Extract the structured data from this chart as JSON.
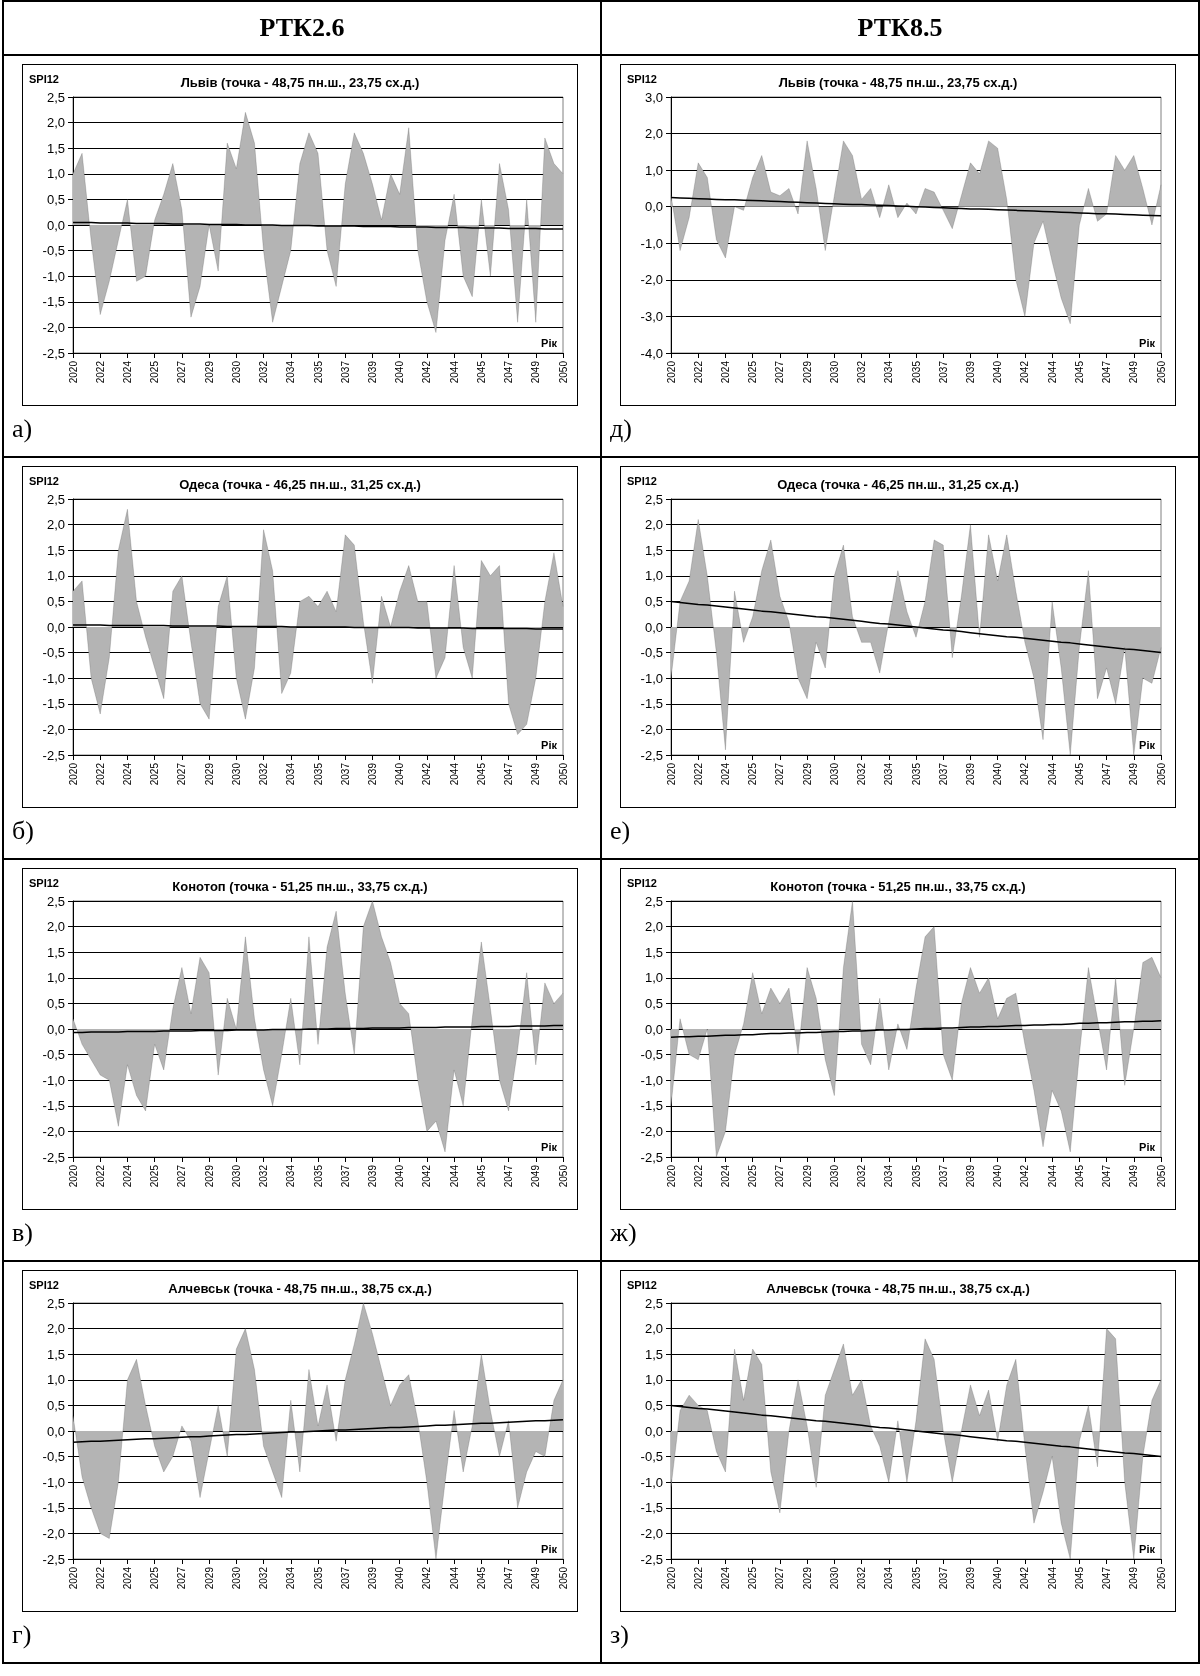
{
  "chart_data": [
    {
      "type": "area",
      "subtitle": "РТК2.6",
      "title": "Львів (точка - 48,75 пн.ш., 23,75 сх.д.)",
      "ylabel": "SPI12",
      "xlabel": "Рік",
      "annotations": [
        "а)"
      ],
      "grid": "y",
      "categories": [
        "2020",
        null,
        null,
        "2022",
        null,
        null,
        "2024",
        null,
        null,
        "2025",
        null,
        null,
        "2027",
        null,
        null,
        "2029",
        null,
        null,
        "2030",
        null,
        null,
        "2032",
        null,
        null,
        "2034",
        null,
        null,
        "2035",
        null,
        null,
        "2037",
        null,
        null,
        "2039",
        null,
        null,
        "2040",
        null,
        null,
        "2042",
        null,
        null,
        "2044",
        null,
        null,
        "2045",
        null,
        null,
        "2047",
        null,
        null,
        "2049",
        null,
        null,
        "2050"
      ],
      "ylim": [
        -2.5,
        2.5
      ],
      "yticks": [
        {
          "value": -2.5,
          "label": "-2,5"
        },
        {
          "value": -2,
          "label": "-2,0"
        },
        {
          "value": -1.5,
          "label": "-1,5"
        },
        {
          "value": -1,
          "label": "-1,0"
        },
        {
          "value": -0.5,
          "label": "-0,5"
        },
        {
          "value": 0,
          "label": "0,0"
        },
        {
          "value": 0.5,
          "label": "0,5"
        },
        {
          "value": 1,
          "label": "1,0"
        },
        {
          "value": 1.5,
          "label": "1,5"
        },
        {
          "value": 2,
          "label": "2,0"
        },
        {
          "value": 2.5,
          "label": "2,5"
        }
      ],
      "series": [
        {
          "type": "area",
          "color": "#b4b4b4",
          "values": [
            1.0,
            1.4,
            -0.3,
            -1.75,
            -1.1,
            -0.3,
            0.5,
            -1.1,
            -1.0,
            0.1,
            0.6,
            1.2,
            0.3,
            -1.8,
            -1.2,
            0.0,
            -0.9,
            1.6,
            1.1,
            2.2,
            1.6,
            -0.5,
            -1.9,
            -1.2,
            -0.5,
            1.2,
            1.8,
            1.4,
            -0.5,
            -1.2,
            0.8,
            1.8,
            1.4,
            0.8,
            0.1,
            1.0,
            0.6,
            1.9,
            -0.5,
            -1.5,
            -2.1,
            -0.3,
            0.6,
            -1.0,
            -1.4,
            0.5,
            -1.0,
            1.2,
            0.3,
            -1.9,
            0.5,
            -1.9,
            1.7,
            1.2,
            1.0
          ]
        },
        {
          "type": "line",
          "color": "#000000",
          "values": [
            0.05,
            0.05,
            0.05,
            0.04,
            0.04,
            0.04,
            0.04,
            0.03,
            0.03,
            0.03,
            0.03,
            0.02,
            0.02,
            0.02,
            0.02,
            0.01,
            0.01,
            0.01,
            0.01,
            0,
            0,
            0,
            0,
            -0.01,
            -0.01,
            -0.01,
            -0.01,
            -0.02,
            -0.02,
            -0.02,
            -0.02,
            -0.02,
            -0.03,
            -0.03,
            -0.03,
            -0.03,
            -0.04,
            -0.04,
            -0.04,
            -0.04,
            -0.05,
            -0.05,
            -0.05,
            -0.05,
            -0.06,
            -0.06,
            -0.06,
            -0.06,
            -0.07,
            -0.07,
            -0.07,
            -0.07,
            -0.08,
            -0.08,
            -0.08
          ]
        }
      ]
    },
    {
      "type": "area",
      "subtitle": "РТК8.5",
      "title": "Львів (точка - 48,75 пн.ш., 23,75 сх.д.)",
      "ylabel": "SPI12",
      "xlabel": "Рік",
      "annotations": [
        "д)"
      ],
      "grid": "y",
      "categories": [
        "2020",
        null,
        null,
        "2022",
        null,
        null,
        "2024",
        null,
        null,
        "2025",
        null,
        null,
        "2027",
        null,
        null,
        "2029",
        null,
        null,
        "2030",
        null,
        null,
        "2032",
        null,
        null,
        "2034",
        null,
        null,
        "2035",
        null,
        null,
        "2037",
        null,
        null,
        "2039",
        null,
        null,
        "2040",
        null,
        null,
        "2042",
        null,
        null,
        "2044",
        null,
        null,
        "2045",
        null,
        null,
        "2047",
        null,
        null,
        "2049",
        null,
        null,
        "2050"
      ],
      "ylim": [
        -4,
        3
      ],
      "yticks": [
        {
          "value": -4,
          "label": "-4,0"
        },
        {
          "value": -3,
          "label": "-3,0"
        },
        {
          "value": -2,
          "label": "-2,0"
        },
        {
          "value": -1,
          "label": "-1,0"
        },
        {
          "value": 0,
          "label": "0,0"
        },
        {
          "value": 1,
          "label": "1,0"
        },
        {
          "value": 2,
          "label": "2,0"
        },
        {
          "value": 3,
          "label": "3,0"
        }
      ],
      "series": [
        {
          "type": "area",
          "color": "#b4b4b4",
          "values": [
            0.3,
            -1.2,
            -0.3,
            1.2,
            0.8,
            -0.9,
            -1.4,
            0.0,
            -0.1,
            0.8,
            1.4,
            0.4,
            0.3,
            0.5,
            -0.2,
            1.8,
            0.5,
            -1.2,
            0.3,
            1.8,
            1.4,
            0.2,
            0.5,
            -0.3,
            0.6,
            -0.3,
            0.1,
            -0.2,
            0.5,
            0.4,
            -0.1,
            -0.6,
            0.3,
            1.2,
            0.9,
            1.8,
            1.6,
            0.2,
            -2.0,
            -3.0,
            -1.0,
            -0.4,
            -1.5,
            -2.5,
            -3.2,
            -0.5,
            0.5,
            -0.4,
            -0.2,
            1.4,
            1.0,
            1.4,
            0.5,
            -0.5,
            0.6
          ]
        },
        {
          "type": "line",
          "color": "#000000",
          "values": [
            0.25,
            0.24,
            0.23,
            0.22,
            0.21,
            0.2,
            0.19,
            0.19,
            0.18,
            0.17,
            0.16,
            0.15,
            0.14,
            0.13,
            0.12,
            0.11,
            0.1,
            0.09,
            0.08,
            0.07,
            0.06,
            0.06,
            0.05,
            0.04,
            0.03,
            0.02,
            0.01,
            0,
            -0.01,
            -0.02,
            -0.03,
            -0.04,
            -0.05,
            -0.06,
            -0.06,
            -0.07,
            -0.08,
            -0.09,
            -0.1,
            -0.11,
            -0.12,
            -0.13,
            -0.14,
            -0.15,
            -0.16,
            -0.17,
            -0.18,
            -0.19,
            -0.19,
            -0.2,
            -0.21,
            -0.22,
            -0.23,
            -0.24,
            -0.25
          ]
        }
      ]
    },
    {
      "type": "area",
      "title": "Одеса (точка - 46,25 пн.ш., 31,25 сх.д.)",
      "ylabel": "SPI12",
      "xlabel": "Рік",
      "annotations": [
        "б)"
      ],
      "grid": "y",
      "categories": [
        "2020",
        null,
        null,
        "2022",
        null,
        null,
        "2024",
        null,
        null,
        "2025",
        null,
        null,
        "2027",
        null,
        null,
        "2029",
        null,
        null,
        "2030",
        null,
        null,
        "2032",
        null,
        null,
        "2034",
        null,
        null,
        "2035",
        null,
        null,
        "2037",
        null,
        null,
        "2039",
        null,
        null,
        "2040",
        null,
        null,
        "2042",
        null,
        null,
        "2044",
        null,
        null,
        "2045",
        null,
        null,
        "2047",
        null,
        null,
        "2049",
        null,
        null,
        "2050"
      ],
      "ylim": [
        -2.5,
        2.5
      ],
      "yticks": [
        {
          "value": -2.5,
          "label": "-2,5"
        },
        {
          "value": -2,
          "label": "-2,0"
        },
        {
          "value": -1.5,
          "label": "-1,5"
        },
        {
          "value": -1,
          "label": "-1,0"
        },
        {
          "value": -0.5,
          "label": "-0,5"
        },
        {
          "value": 0,
          "label": "0,0"
        },
        {
          "value": 0.5,
          "label": "0,5"
        },
        {
          "value": 1,
          "label": "1,0"
        },
        {
          "value": 1.5,
          "label": "1,5"
        },
        {
          "value": 2,
          "label": "2,0"
        },
        {
          "value": 2.5,
          "label": "2,5"
        }
      ],
      "series": [
        {
          "type": "area",
          "color": "#b4b4b4",
          "values": [
            0.7,
            0.9,
            -1.0,
            -1.7,
            -0.6,
            1.5,
            2.3,
            0.5,
            -0.2,
            -0.8,
            -1.4,
            0.7,
            1.0,
            -0.3,
            -1.5,
            -1.8,
            0.4,
            1.0,
            -1.0,
            -1.8,
            -0.8,
            1.9,
            1.1,
            -1.3,
            -0.9,
            0.5,
            0.6,
            0.4,
            0.7,
            0.3,
            1.8,
            1.6,
            0.1,
            -1.1,
            0.6,
            0.0,
            0.7,
            1.2,
            0.5,
            0.5,
            -1.0,
            -0.6,
            1.2,
            -0.4,
            -1.0,
            1.3,
            1.0,
            1.2,
            -1.5,
            -2.1,
            -1.9,
            -1.0,
            0.5,
            1.45,
            0.4
          ]
        },
        {
          "type": "line",
          "color": "#000000",
          "values": [
            0.04,
            0.04,
            0.04,
            0.04,
            0.03,
            0.03,
            0.03,
            0.03,
            0.03,
            0.03,
            0.03,
            0.02,
            0.02,
            0.02,
            0.02,
            0.02,
            0.02,
            0.01,
            0.01,
            0.01,
            0.01,
            0.01,
            0.01,
            0.01,
            0,
            0,
            0,
            0,
            0,
            0,
            0,
            -0.01,
            -0.01,
            -0.01,
            -0.01,
            -0.01,
            -0.01,
            -0.01,
            -0.02,
            -0.02,
            -0.02,
            -0.02,
            -0.02,
            -0.02,
            -0.03,
            -0.03,
            -0.03,
            -0.03,
            -0.03,
            -0.03,
            -0.03,
            -0.04,
            -0.04,
            -0.04,
            -0.04
          ]
        }
      ]
    },
    {
      "type": "area",
      "title": "Одеса (точка - 46,25 пн.ш., 31,25 сх.д.)",
      "ylabel": "SPI12",
      "xlabel": "Рік",
      "annotations": [
        "е)"
      ],
      "grid": "y",
      "categories": [
        "2020",
        null,
        null,
        "2022",
        null,
        null,
        "2024",
        null,
        null,
        "2025",
        null,
        null,
        "2027",
        null,
        null,
        "2029",
        null,
        null,
        "2030",
        null,
        null,
        "2032",
        null,
        null,
        "2034",
        null,
        null,
        "2035",
        null,
        null,
        "2037",
        null,
        null,
        "2039",
        null,
        null,
        "2040",
        null,
        null,
        "2042",
        null,
        null,
        "2044",
        null,
        null,
        "2045",
        null,
        null,
        "2047",
        null,
        null,
        "2049",
        null,
        null,
        "2050"
      ],
      "ylim": [
        -2.5,
        2.5
      ],
      "yticks": [
        {
          "value": -2.5,
          "label": "-2,5"
        },
        {
          "value": -2,
          "label": "-2,0"
        },
        {
          "value": -1.5,
          "label": "-1,5"
        },
        {
          "value": -1,
          "label": "-1,0"
        },
        {
          "value": -0.5,
          "label": "-0,5"
        },
        {
          "value": 0,
          "label": "0,0"
        },
        {
          "value": 0.5,
          "label": "0,5"
        },
        {
          "value": 1,
          "label": "1,0"
        },
        {
          "value": 1.5,
          "label": "1,5"
        },
        {
          "value": 2,
          "label": "2,0"
        },
        {
          "value": 2.5,
          "label": "2,5"
        }
      ],
      "series": [
        {
          "type": "area",
          "color": "#b4b4b4",
          "values": [
            -1.0,
            0.5,
            0.9,
            2.1,
            1.0,
            -0.5,
            -2.4,
            0.7,
            -0.3,
            0.2,
            1.1,
            1.7,
            0.6,
            0.1,
            -1.0,
            -1.4,
            -0.3,
            -0.8,
            1.0,
            1.6,
            0.2,
            -0.3,
            -0.3,
            -0.9,
            0.1,
            1.1,
            0.3,
            -0.2,
            0.5,
            1.7,
            1.6,
            -0.6,
            0.6,
            2.0,
            -0.2,
            1.8,
            0.9,
            1.8,
            0.7,
            -0.3,
            -1.0,
            -2.2,
            0.5,
            -0.8,
            -2.5,
            -0.4,
            1.1,
            -1.4,
            -0.8,
            -1.5,
            -0.4,
            -2.5,
            -1.0,
            -1.1,
            -0.4
          ]
        },
        {
          "type": "line",
          "color": "#000000",
          "values": [
            0.5,
            0.48,
            0.46,
            0.44,
            0.43,
            0.41,
            0.39,
            0.37,
            0.35,
            0.33,
            0.31,
            0.3,
            0.28,
            0.26,
            0.24,
            0.22,
            0.2,
            0.19,
            0.17,
            0.15,
            0.13,
            0.11,
            0.09,
            0.07,
            0.06,
            0.04,
            0.02,
            0,
            -0.02,
            -0.04,
            -0.06,
            -0.07,
            -0.09,
            -0.11,
            -0.13,
            -0.15,
            -0.17,
            -0.19,
            -0.2,
            -0.22,
            -0.24,
            -0.26,
            -0.28,
            -0.3,
            -0.31,
            -0.33,
            -0.35,
            -0.37,
            -0.39,
            -0.41,
            -0.43,
            -0.44,
            -0.46,
            -0.48,
            -0.5
          ]
        }
      ]
    },
    {
      "type": "area",
      "title": "Конотоп (точка - 51,25 пн.ш., 33,75 сх.д.)",
      "ylabel": "SPI12",
      "xlabel": "Рік",
      "annotations": [
        "в)"
      ],
      "grid": "y",
      "categories": [
        "2020",
        null,
        null,
        "2022",
        null,
        null,
        "2024",
        null,
        null,
        "2025",
        null,
        null,
        "2027",
        null,
        null,
        "2029",
        null,
        null,
        "2030",
        null,
        null,
        "2032",
        null,
        null,
        "2034",
        null,
        null,
        "2035",
        null,
        null,
        "2037",
        null,
        null,
        "2039",
        null,
        null,
        "2040",
        null,
        null,
        "2042",
        null,
        null,
        "2044",
        null,
        null,
        "2045",
        null,
        null,
        "2047",
        null,
        null,
        "2049",
        null,
        null,
        "2050"
      ],
      "ylim": [
        -2.5,
        2.5
      ],
      "yticks": [
        {
          "value": -2.5,
          "label": "-2,5"
        },
        {
          "value": -2,
          "label": "-2,0"
        },
        {
          "value": -1.5,
          "label": "-1,5"
        },
        {
          "value": -1,
          "label": "-1,0"
        },
        {
          "value": -0.5,
          "label": "-0,5"
        },
        {
          "value": 0,
          "label": "0,0"
        },
        {
          "value": 0.5,
          "label": "0,5"
        },
        {
          "value": 1,
          "label": "1,0"
        },
        {
          "value": 1.5,
          "label": "1,5"
        },
        {
          "value": 2,
          "label": "2,0"
        },
        {
          "value": 2.5,
          "label": "2,5"
        }
      ],
      "series": [
        {
          "type": "area",
          "color": "#b4b4b4",
          "values": [
            0.2,
            -0.3,
            -0.6,
            -0.9,
            -1.0,
            -1.9,
            -0.7,
            -1.3,
            -1.6,
            -0.3,
            -0.8,
            0.4,
            1.2,
            0.3,
            1.4,
            1.1,
            -0.9,
            0.6,
            0.0,
            1.8,
            0.2,
            -0.8,
            -1.5,
            -0.5,
            0.6,
            -0.7,
            1.8,
            -0.3,
            1.6,
            2.3,
            0.7,
            -0.5,
            2.0,
            2.5,
            1.8,
            1.3,
            0.5,
            0.3,
            -1.0,
            -2.0,
            -1.8,
            -2.4,
            -0.8,
            -1.5,
            0.2,
            1.7,
            0.4,
            -1.0,
            -1.6,
            -0.4,
            1.1,
            -0.7,
            0.9,
            0.5,
            0.7
          ]
        },
        {
          "type": "line",
          "color": "#000000",
          "values": [
            -0.07,
            -0.07,
            -0.06,
            -0.06,
            -0.06,
            -0.06,
            -0.05,
            -0.05,
            -0.05,
            -0.05,
            -0.04,
            -0.04,
            -0.04,
            -0.04,
            -0.03,
            -0.03,
            -0.03,
            -0.03,
            -0.02,
            -0.02,
            -0.02,
            -0.02,
            -0.01,
            -0.01,
            -0.01,
            -0.01,
            0,
            0,
            0,
            0.01,
            0.01,
            0.01,
            0.01,
            0.02,
            0.02,
            0.02,
            0.02,
            0.03,
            0.03,
            0.03,
            0.03,
            0.04,
            0.04,
            0.04,
            0.04,
            0.05,
            0.05,
            0.05,
            0.05,
            0.06,
            0.06,
            0.06,
            0.06,
            0.07,
            0.07
          ]
        }
      ]
    },
    {
      "type": "area",
      "title": "Конотоп (точка - 51,25 пн.ш., 33,75 сх.д.)",
      "ylabel": "SPI12",
      "xlabel": "Рік",
      "annotations": [
        "ж)"
      ],
      "grid": "y",
      "categories": [
        "2020",
        null,
        null,
        "2022",
        null,
        null,
        "2024",
        null,
        null,
        "2025",
        null,
        null,
        "2027",
        null,
        null,
        "2029",
        null,
        null,
        "2030",
        null,
        null,
        "2032",
        null,
        null,
        "2034",
        null,
        null,
        "2035",
        null,
        null,
        "2037",
        null,
        null,
        "2039",
        null,
        null,
        "2040",
        null,
        null,
        "2042",
        null,
        null,
        "2044",
        null,
        null,
        "2045",
        null,
        null,
        "2047",
        null,
        null,
        "2049",
        null,
        null,
        "2050"
      ],
      "ylim": [
        -2.5,
        2.5
      ],
      "yticks": [
        {
          "value": -2.5,
          "label": "-2,5"
        },
        {
          "value": -2,
          "label": "-2,0"
        },
        {
          "value": -1.5,
          "label": "-1,5"
        },
        {
          "value": -1,
          "label": "-1,0"
        },
        {
          "value": -0.5,
          "label": "-0,5"
        },
        {
          "value": 0,
          "label": "0,0"
        },
        {
          "value": 0.5,
          "label": "0,5"
        },
        {
          "value": 1,
          "label": "1,0"
        },
        {
          "value": 1.5,
          "label": "1,5"
        },
        {
          "value": 2,
          "label": "2,0"
        },
        {
          "value": 2.5,
          "label": "2,5"
        }
      ],
      "series": [
        {
          "type": "area",
          "color": "#b4b4b4",
          "values": [
            -1.5,
            0.2,
            -0.5,
            -0.6,
            0.0,
            -2.5,
            -2.0,
            -0.5,
            0.1,
            1.1,
            0.3,
            0.8,
            0.5,
            0.8,
            -0.5,
            1.2,
            0.6,
            -0.6,
            -1.3,
            1.2,
            2.5,
            -0.3,
            -0.7,
            0.6,
            -0.8,
            0.1,
            -0.4,
            0.8,
            1.8,
            2.0,
            -0.5,
            -1.0,
            0.5,
            1.2,
            0.7,
            1.0,
            0.2,
            0.6,
            0.7,
            -0.3,
            -1.2,
            -2.3,
            -1.2,
            -1.6,
            -2.4,
            -0.5,
            1.2,
            0.2,
            -0.8,
            1.0,
            -1.1,
            0.0,
            1.3,
            1.4,
            1.0
          ]
        },
        {
          "type": "line",
          "color": "#000000",
          "values": [
            -0.16,
            -0.15,
            -0.15,
            -0.14,
            -0.14,
            -0.13,
            -0.12,
            -0.12,
            -0.11,
            -0.11,
            -0.1,
            -0.09,
            -0.09,
            -0.08,
            -0.08,
            -0.07,
            -0.07,
            -0.06,
            -0.05,
            -0.05,
            -0.04,
            -0.04,
            -0.03,
            -0.02,
            -0.02,
            -0.01,
            -0.01,
            0,
            0.01,
            0.01,
            0.02,
            0.02,
            0.03,
            0.04,
            0.04,
            0.05,
            0.05,
            0.06,
            0.07,
            0.07,
            0.08,
            0.08,
            0.09,
            0.09,
            0.1,
            0.11,
            0.11,
            0.12,
            0.12,
            0.13,
            0.14,
            0.14,
            0.15,
            0.15,
            0.16
          ]
        }
      ]
    },
    {
      "type": "area",
      "title": "Алчевськ (точка - 48,75 пн.ш., 38,75 сх.д.)",
      "ylabel": "SPI12",
      "xlabel": "Рік",
      "annotations": [
        "г)"
      ],
      "grid": "y",
      "categories": [
        "2020",
        null,
        null,
        "2022",
        null,
        null,
        "2024",
        null,
        null,
        "2025",
        null,
        null,
        "2027",
        null,
        null,
        "2029",
        null,
        null,
        "2030",
        null,
        null,
        "2032",
        null,
        null,
        "2034",
        null,
        null,
        "2035",
        null,
        null,
        "2037",
        null,
        null,
        "2039",
        null,
        null,
        "2040",
        null,
        null,
        "2042",
        null,
        null,
        "2044",
        null,
        null,
        "2045",
        null,
        null,
        "2047",
        null,
        null,
        "2049",
        null,
        null,
        "2050"
      ],
      "ylim": [
        -2.5,
        2.5
      ],
      "yticks": [
        {
          "value": -2.5,
          "label": "-2,5"
        },
        {
          "value": -2,
          "label": "-2,0"
        },
        {
          "value": -1.5,
          "label": "-1,5"
        },
        {
          "value": -1,
          "label": "-1,0"
        },
        {
          "value": -0.5,
          "label": "-0,5"
        },
        {
          "value": 0,
          "label": "0,0"
        },
        {
          "value": 0.5,
          "label": "0,5"
        },
        {
          "value": 1,
          "label": "1,0"
        },
        {
          "value": 1.5,
          "label": "1,5"
        },
        {
          "value": 2,
          "label": "2,0"
        },
        {
          "value": 2.5,
          "label": "2,5"
        }
      ],
      "series": [
        {
          "type": "area",
          "color": "#b4b4b4",
          "values": [
            0.3,
            -0.9,
            -1.5,
            -2.0,
            -2.1,
            -1.0,
            1.0,
            1.4,
            0.5,
            -0.3,
            -0.8,
            -0.5,
            0.1,
            -0.2,
            -1.3,
            -0.4,
            0.5,
            -0.5,
            1.6,
            2.0,
            1.2,
            -0.3,
            -0.8,
            -1.3,
            0.6,
            -0.8,
            1.2,
            0.1,
            0.9,
            -0.2,
            1.0,
            1.7,
            2.5,
            1.9,
            1.2,
            0.5,
            0.9,
            1.1,
            0.2,
            -1.0,
            -2.5,
            -1.0,
            0.4,
            -0.8,
            0.1,
            1.5,
            0.4,
            -0.5,
            0.2,
            -1.5,
            -0.8,
            -0.4,
            -0.5,
            0.6,
            1.0
          ]
        },
        {
          "type": "line",
          "color": "#000000",
          "values": [
            -0.22,
            -0.21,
            -0.2,
            -0.2,
            -0.19,
            -0.18,
            -0.17,
            -0.16,
            -0.15,
            -0.15,
            -0.14,
            -0.13,
            -0.12,
            -0.11,
            -0.11,
            -0.1,
            -0.09,
            -0.08,
            -0.07,
            -0.07,
            -0.06,
            -0.05,
            -0.04,
            -0.03,
            -0.02,
            -0.02,
            -0.01,
            0,
            0.01,
            0.02,
            0.02,
            0.03,
            0.04,
            0.05,
            0.06,
            0.07,
            0.07,
            0.08,
            0.09,
            0.1,
            0.11,
            0.11,
            0.12,
            0.13,
            0.14,
            0.15,
            0.15,
            0.16,
            0.17,
            0.18,
            0.19,
            0.2,
            0.2,
            0.21,
            0.22
          ]
        }
      ]
    },
    {
      "type": "area",
      "title": "Алчевськ (точка - 48,75 пн.ш., 38,75 сх.д.)",
      "ylabel": "SPI12",
      "xlabel": "Рік",
      "annotations": [
        "з)"
      ],
      "grid": "y",
      "categories": [
        "2020",
        null,
        null,
        "2022",
        null,
        null,
        "2024",
        null,
        null,
        "2025",
        null,
        null,
        "2027",
        null,
        null,
        "2029",
        null,
        null,
        "2030",
        null,
        null,
        "2032",
        null,
        null,
        "2034",
        null,
        null,
        "2035",
        null,
        null,
        "2037",
        null,
        null,
        "2039",
        null,
        null,
        "2040",
        null,
        null,
        "2042",
        null,
        null,
        "2044",
        null,
        null,
        "2045",
        null,
        null,
        "2047",
        null,
        null,
        "2049",
        null,
        null,
        "2050"
      ],
      "ylim": [
        -2.5,
        2.5
      ],
      "yticks": [
        {
          "value": -2.5,
          "label": "-2,5"
        },
        {
          "value": -2,
          "label": "-2,0"
        },
        {
          "value": -1.5,
          "label": "-1,5"
        },
        {
          "value": -1,
          "label": "-1,0"
        },
        {
          "value": -0.5,
          "label": "-0,5"
        },
        {
          "value": 0,
          "label": "0,0"
        },
        {
          "value": 0.5,
          "label": "0,5"
        },
        {
          "value": 1,
          "label": "1,0"
        },
        {
          "value": 1.5,
          "label": "1,5"
        },
        {
          "value": 2,
          "label": "2,0"
        },
        {
          "value": 2.5,
          "label": "2,5"
        }
      ],
      "series": [
        {
          "type": "area",
          "color": "#b4b4b4",
          "values": [
            -1.1,
            0.4,
            0.7,
            0.5,
            0.4,
            -0.4,
            -0.8,
            1.6,
            0.6,
            1.6,
            1.3,
            -0.8,
            -1.6,
            0.0,
            1.0,
            0.1,
            -1.1,
            0.7,
            1.2,
            1.7,
            0.7,
            1.0,
            0.1,
            -0.3,
            -1.0,
            0.2,
            -1.0,
            0.2,
            1.8,
            1.4,
            0.0,
            -1.0,
            0.0,
            0.9,
            0.3,
            0.8,
            -0.2,
            0.9,
            1.4,
            -0.3,
            -1.8,
            -1.2,
            -0.5,
            -1.8,
            -2.5,
            -0.2,
            0.5,
            -0.7,
            2.0,
            1.8,
            -1.0,
            -2.5,
            -0.5,
            0.6,
            1.0
          ]
        },
        {
          "type": "line",
          "color": "#000000",
          "values": [
            0.5,
            0.48,
            0.46,
            0.44,
            0.43,
            0.41,
            0.39,
            0.37,
            0.35,
            0.33,
            0.31,
            0.3,
            0.28,
            0.26,
            0.24,
            0.22,
            0.2,
            0.19,
            0.17,
            0.15,
            0.13,
            0.11,
            0.09,
            0.07,
            0.06,
            0.04,
            0.02,
            0,
            -0.02,
            -0.04,
            -0.06,
            -0.07,
            -0.09,
            -0.11,
            -0.13,
            -0.15,
            -0.17,
            -0.19,
            -0.2,
            -0.22,
            -0.24,
            -0.26,
            -0.28,
            -0.3,
            -0.31,
            -0.33,
            -0.35,
            -0.37,
            -0.39,
            -0.41,
            -0.43,
            -0.44,
            -0.46,
            -0.48,
            -0.5
          ]
        }
      ]
    }
  ]
}
